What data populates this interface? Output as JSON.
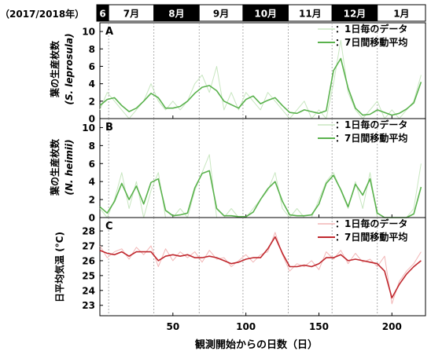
{
  "header": {
    "year_label": "（2017/2018年）",
    "months": [
      "6",
      "7月",
      "8月",
      "9月",
      "10月",
      "11月",
      "12月",
      "1月"
    ],
    "month_styles": [
      "dark",
      "light",
      "dark",
      "light",
      "dark",
      "light",
      "dark",
      "light"
    ]
  },
  "xaxis": {
    "label": "観測開始からの日数（日）",
    "tick_values": [
      50,
      100,
      150,
      200
    ],
    "tick_labels": [
      "50",
      "100",
      "150",
      "200"
    ],
    "range": [
      0,
      223
    ],
    "month_boundaries": [
      6,
      37,
      68,
      98,
      129,
      159,
      190
    ]
  },
  "colors": {
    "green": "#5ab24d",
    "green_light": "#c8e6c0",
    "red": "#c0282e",
    "red_light": "#f2b6b6",
    "boundary": "#999999",
    "frame": "#000000"
  },
  "chart_data": [
    {
      "type": "line",
      "panel_label": "A",
      "ylabel": "葉の生産枚数",
      "ylabel_species": "(S. leprosula)",
      "ylim": [
        0,
        11
      ],
      "yticks": [
        "0",
        "2",
        "4",
        "6",
        "8",
        "10"
      ],
      "ytick_values": [
        0,
        2,
        4,
        6,
        8,
        10
      ],
      "legend": [
        "：1日毎のデータ",
        "：7日間移動平均"
      ],
      "series": [
        {
          "style": "light",
          "x": [
            0,
            5,
            10,
            15,
            20,
            25,
            30,
            35,
            40,
            45,
            50,
            55,
            60,
            65,
            70,
            75,
            80,
            85,
            90,
            95,
            100,
            105,
            110,
            115,
            120,
            125,
            130,
            135,
            140,
            145,
            150,
            155,
            160,
            165,
            170,
            175,
            180,
            185,
            190,
            195,
            200,
            205,
            210,
            215,
            220
          ],
          "values": [
            1,
            3,
            2,
            1,
            0,
            1,
            2,
            4,
            2,
            1,
            2,
            1,
            2,
            4,
            5,
            3,
            6,
            1,
            3,
            1,
            3,
            2,
            1,
            3,
            2,
            1,
            0,
            1,
            2,
            0,
            1,
            0,
            4,
            9,
            3,
            1,
            0,
            1,
            2,
            0,
            1,
            0,
            1,
            2,
            5
          ]
        },
        {
          "style": "avg",
          "x": [
            0,
            5,
            10,
            15,
            20,
            25,
            30,
            35,
            40,
            45,
            50,
            55,
            60,
            65,
            70,
            75,
            80,
            85,
            90,
            95,
            100,
            105,
            110,
            115,
            120,
            125,
            130,
            135,
            140,
            145,
            150,
            155,
            160,
            165,
            170,
            175,
            180,
            185,
            190,
            195,
            200,
            205,
            210,
            215,
            220
          ],
          "values": [
            1.5,
            2.2,
            2.4,
            1.5,
            0.8,
            1.2,
            2.0,
            2.9,
            2.4,
            1.2,
            1.2,
            1.4,
            2.0,
            2.9,
            3.6,
            3.8,
            3.2,
            2.0,
            1.6,
            1.2,
            2.2,
            2.6,
            1.7,
            2.1,
            2.4,
            1.5,
            0.7,
            0.6,
            1.0,
            0.8,
            0.6,
            0.9,
            5.5,
            6.9,
            3.5,
            1.2,
            0.4,
            0.5,
            1.0,
            0.7,
            0.4,
            0.6,
            1.1,
            1.8,
            4.2
          ]
        }
      ]
    },
    {
      "type": "line",
      "panel_label": "B",
      "ylabel": "葉の生産枚数",
      "ylabel_species": "(N. heimii)",
      "ylim": [
        0,
        11
      ],
      "yticks": [
        "0",
        "2",
        "4",
        "6",
        "8",
        "10"
      ],
      "ytick_values": [
        0,
        2,
        4,
        6,
        8,
        10
      ],
      "legend": [
        "：1日毎のデータ",
        "：7日間移動平均"
      ],
      "series": [
        {
          "style": "light",
          "x": [
            0,
            5,
            10,
            15,
            20,
            25,
            30,
            35,
            40,
            45,
            50,
            55,
            60,
            65,
            70,
            75,
            80,
            85,
            90,
            95,
            100,
            105,
            110,
            115,
            120,
            125,
            130,
            135,
            140,
            145,
            150,
            155,
            160,
            165,
            170,
            175,
            180,
            185,
            190,
            195,
            200,
            205,
            210,
            215,
            220
          ],
          "values": [
            1,
            0,
            2,
            5,
            1,
            4,
            0,
            3,
            5,
            0,
            0,
            1,
            0,
            3,
            5,
            7,
            0,
            0,
            1,
            0,
            0,
            1,
            2,
            3,
            5,
            1,
            0,
            1,
            0,
            0,
            2,
            4,
            5,
            3,
            1,
            4,
            1,
            5,
            0,
            0,
            0,
            0,
            0,
            1,
            6
          ]
        },
        {
          "style": "avg",
          "x": [
            0,
            5,
            10,
            15,
            20,
            25,
            30,
            35,
            40,
            45,
            50,
            55,
            60,
            65,
            70,
            75,
            80,
            85,
            90,
            95,
            100,
            105,
            110,
            115,
            120,
            125,
            130,
            135,
            140,
            145,
            150,
            155,
            160,
            165,
            170,
            175,
            180,
            185,
            190,
            195,
            200,
            205,
            210,
            215,
            220
          ],
          "values": [
            1.2,
            0.5,
            1.8,
            3.8,
            2.0,
            3.5,
            1.5,
            3.9,
            4.3,
            0.8,
            0.2,
            0.3,
            0.5,
            3.3,
            4.9,
            5.2,
            1.0,
            0.2,
            0.2,
            0.1,
            0.1,
            0.6,
            2.0,
            3.2,
            4.0,
            1.8,
            0.3,
            0.2,
            0.2,
            0.3,
            1.5,
            3.8,
            4.7,
            3.1,
            1.2,
            3.7,
            2.5,
            4.3,
            0.5,
            0.0,
            0.0,
            0.0,
            0.0,
            0.4,
            3.4
          ]
        }
      ]
    },
    {
      "type": "line",
      "panel_label": "C",
      "ylabel": "日平均気温 (°C)",
      "ylim": [
        22.3,
        28.9
      ],
      "yticks": [
        "23",
        "24",
        "25",
        "26",
        "27",
        "28"
      ],
      "ytick_values": [
        23,
        24,
        25,
        26,
        27,
        28
      ],
      "legend": [
        "：1日毎のデータ",
        "：7日間移動平均"
      ],
      "series": [
        {
          "style": "light",
          "x": [
            0,
            5,
            10,
            15,
            20,
            25,
            30,
            35,
            40,
            45,
            50,
            55,
            60,
            65,
            70,
            75,
            80,
            85,
            90,
            95,
            100,
            105,
            110,
            115,
            120,
            125,
            130,
            135,
            140,
            145,
            150,
            155,
            160,
            165,
            170,
            175,
            180,
            185,
            190,
            195,
            200,
            205,
            210,
            215,
            220
          ],
          "values": [
            27.0,
            26.2,
            26.6,
            26.8,
            26.1,
            26.9,
            26.4,
            27.0,
            25.6,
            26.8,
            26.0,
            26.6,
            26.2,
            26.6,
            25.9,
            26.7,
            26.1,
            26.2,
            25.6,
            26.0,
            26.4,
            25.9,
            26.4,
            26.6,
            27.9,
            26.4,
            25.3,
            25.8,
            25.6,
            26.0,
            25.4,
            26.6,
            26.1,
            26.7,
            25.8,
            26.5,
            25.9,
            26.1,
            25.6,
            26.3,
            23.1,
            24.6,
            25.3,
            25.8,
            26.6
          ]
        },
        {
          "style": "avg",
          "x": [
            0,
            5,
            10,
            15,
            20,
            25,
            30,
            35,
            40,
            45,
            50,
            55,
            60,
            65,
            70,
            75,
            80,
            85,
            90,
            95,
            100,
            105,
            110,
            115,
            120,
            125,
            130,
            135,
            140,
            145,
            150,
            155,
            160,
            165,
            170,
            175,
            180,
            185,
            190,
            195,
            200,
            205,
            210,
            215,
            220
          ],
          "values": [
            26.7,
            26.5,
            26.4,
            26.6,
            26.3,
            26.6,
            26.6,
            26.6,
            26.0,
            26.3,
            26.4,
            26.3,
            26.4,
            26.2,
            26.2,
            26.3,
            26.2,
            26.0,
            25.8,
            25.9,
            26.1,
            26.2,
            26.2,
            26.8,
            27.6,
            26.5,
            25.6,
            25.6,
            25.7,
            25.6,
            25.8,
            26.2,
            26.2,
            26.4,
            26.0,
            26.1,
            26.0,
            25.9,
            25.8,
            25.3,
            23.5,
            24.4,
            25.1,
            25.6,
            26.0
          ]
        }
      ]
    }
  ]
}
